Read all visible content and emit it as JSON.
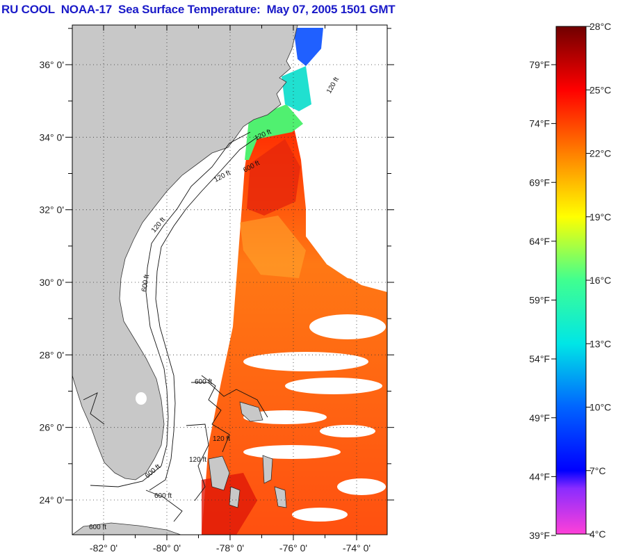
{
  "title": "RU COOL  NOAA-17  Sea Surface Temperature:  May 07, 2005 1501 GMT",
  "map": {
    "lon_range": [
      -83,
      -73
    ],
    "lat_range": [
      23,
      37
    ],
    "lat_labels": [
      {
        "lat": 36,
        "label": "36° 0'"
      },
      {
        "lat": 34,
        "label": "34° 0'"
      },
      {
        "lat": 32,
        "label": "32° 0'"
      },
      {
        "lat": 30,
        "label": "30° 0'"
      },
      {
        "lat": 28,
        "label": "28° 0'"
      },
      {
        "lat": 26,
        "label": "26° 0'"
      },
      {
        "lat": 24,
        "label": "24° 0'"
      }
    ],
    "lon_labels": [
      {
        "lon": -82,
        "label": "-82° 0'"
      },
      {
        "lon": -80,
        "label": "-80° 0'"
      },
      {
        "lon": -78,
        "label": "-78° 0'"
      },
      {
        "lon": -76,
        "label": "-76° 0'"
      },
      {
        "lon": -74,
        "label": "-74° 0'"
      }
    ],
    "contour_labels": [
      "120 ft",
      "600 ft"
    ],
    "colors": {
      "land": "#c8c8c8",
      "ocean": "#ffffff",
      "grid": "#444444"
    }
  },
  "colorbar": {
    "celsius_labels": [
      "28°C",
      "25°C",
      "22°C",
      "19°C",
      "16°C",
      "13°C",
      "10°C",
      "7°C",
      "4°C"
    ],
    "fahrenheit_labels": [
      "79°F",
      "74°F",
      "69°F",
      "64°F",
      "59°F",
      "54°F",
      "49°F",
      "44°F",
      "39°F"
    ],
    "colors": [
      "#6a0000",
      "#ff0000",
      "#ff8000",
      "#ffff00",
      "#80ff40",
      "#00e6c8",
      "#0064ff",
      "#0000ff",
      "#7020ff",
      "#ff40c8"
    ]
  }
}
